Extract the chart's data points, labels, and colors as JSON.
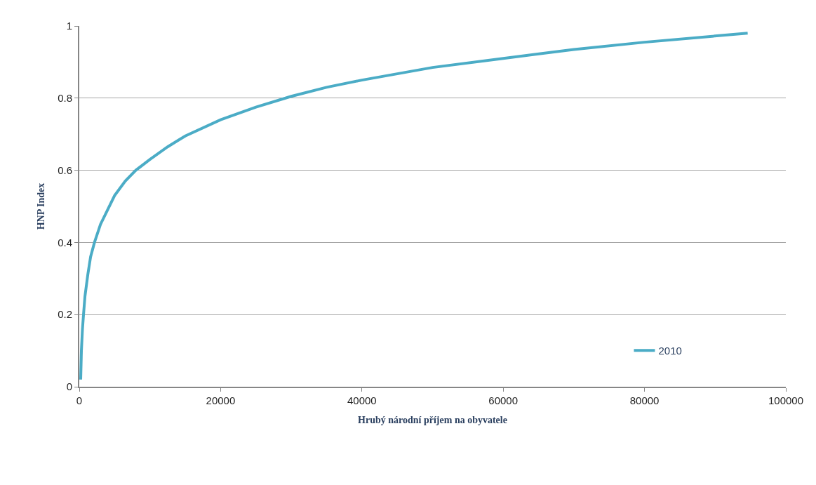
{
  "chart_data": {
    "type": "line",
    "xlabel": "Hrubý národní příjem na obyvatele",
    "ylabel": "HNP Index",
    "x": [
      200,
      300,
      450,
      600,
      800,
      1200,
      1600,
      2150,
      3000,
      4000,
      5000,
      6500,
      8000,
      10000,
      12500,
      15000,
      20000,
      25000,
      30000,
      35000,
      40000,
      50000,
      60000,
      70000,
      80000,
      94600
    ],
    "series": [
      {
        "name": "2010",
        "color": "#4bacc6",
        "values": [
          0.02,
          0.1,
          0.16,
          0.2,
          0.25,
          0.31,
          0.36,
          0.4,
          0.45,
          0.49,
          0.53,
          0.57,
          0.6,
          0.63,
          0.665,
          0.695,
          0.74,
          0.775,
          0.805,
          0.83,
          0.85,
          0.885,
          0.91,
          0.935,
          0.955,
          0.98
        ]
      }
    ],
    "xlim": [
      0,
      100000
    ],
    "xticks": [
      0,
      20000,
      40000,
      60000,
      80000,
      100000
    ],
    "ylim": [
      0,
      1
    ],
    "yticks": [
      0,
      0.2,
      0.4,
      0.6,
      0.8,
      1
    ],
    "grid": "y",
    "legend": "bottom right",
    "marker": "none",
    "line_style": "solid"
  }
}
